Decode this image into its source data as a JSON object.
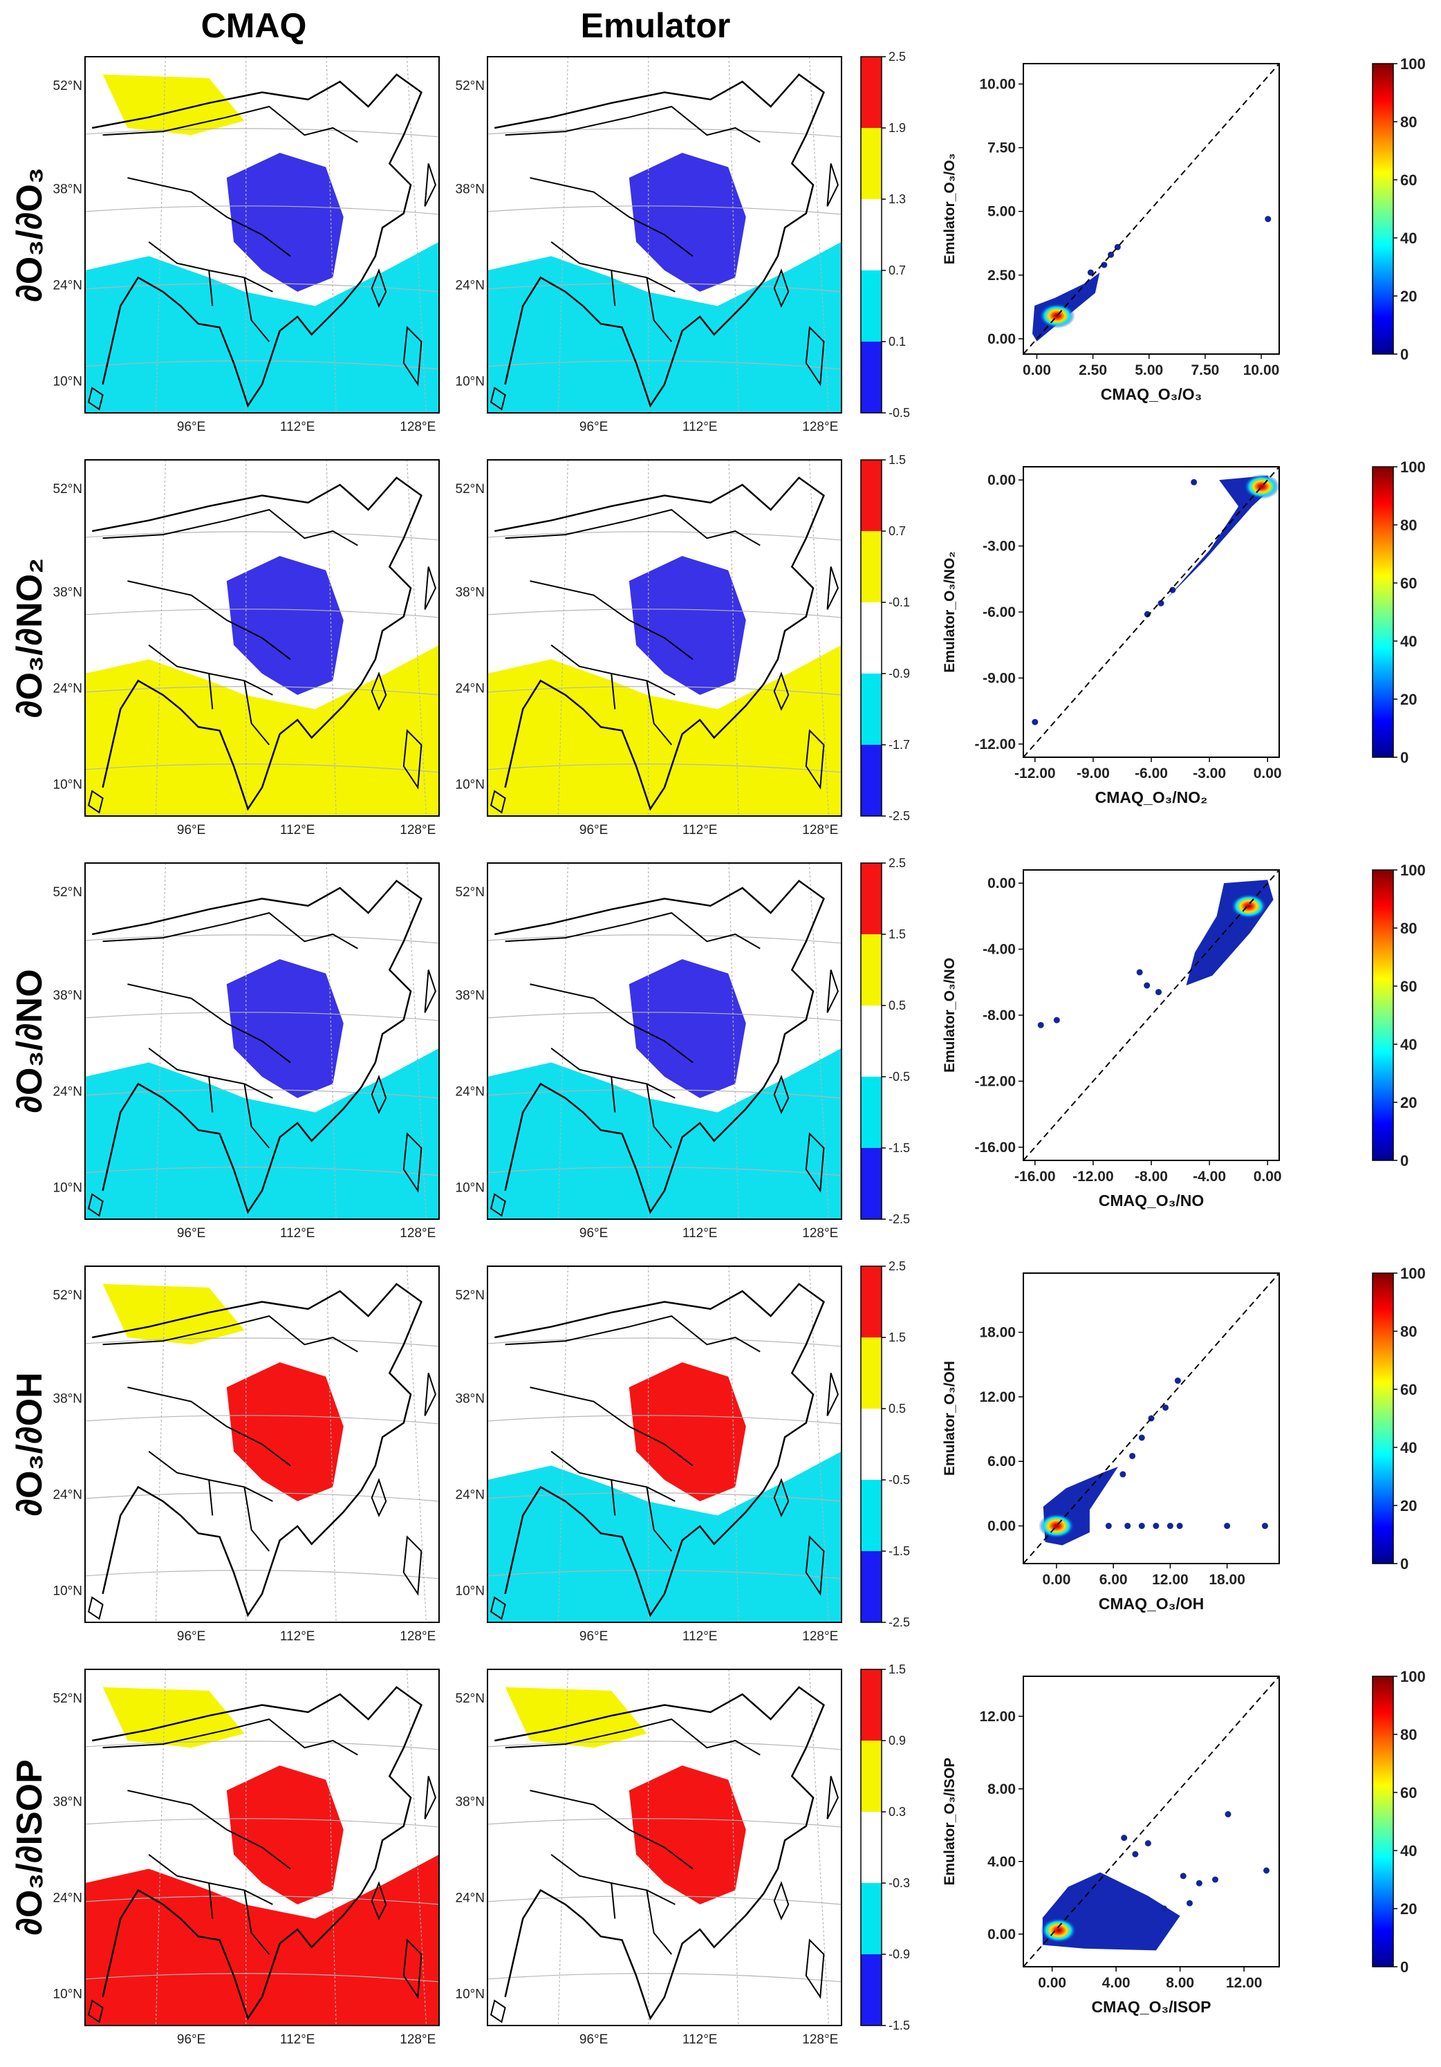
{
  "headers": {
    "cmaq": "CMAQ",
    "emulator": "Emulator"
  },
  "map_axes": {
    "lat_labels": [
      "52°N",
      "38°N",
      "24°N",
      "10°N"
    ],
    "lon_labels": [
      "96°E",
      "112°E",
      "128°E"
    ]
  },
  "colors": {
    "blue": "#1b1bf5",
    "cyan": "#00e6f0",
    "white": "#ffffff",
    "yellow": "#f5f500",
    "red": "#f51414",
    "region_blue": "#3a32e6",
    "region_cyan": "#10e0ee"
  },
  "rows": [
    {
      "row_label": "∂O₃/∂O₃",
      "map_colorbar_ticks": [
        "2.5",
        "1.9",
        "1.3",
        "0.7",
        "0.1",
        "-0.5"
      ],
      "map_fill": {
        "cmaq": [
          "region_cyan",
          "region_blue",
          "yellow"
        ],
        "emulator": [
          "region_cyan",
          "region_blue",
          "white"
        ]
      }
    },
    {
      "row_label": "∂O₃/∂NO₂",
      "map_colorbar_ticks": [
        "1.5",
        "0.7",
        "-0.1",
        "-0.9",
        "-1.7",
        "-2.5"
      ],
      "map_fill": {
        "cmaq": [
          "yellow",
          "region_blue",
          "white"
        ],
        "emulator": [
          "yellow",
          "region_blue",
          "white"
        ]
      }
    },
    {
      "row_label": "∂O₃/∂NO",
      "map_colorbar_ticks": [
        "2.5",
        "1.5",
        "0.5",
        "-0.5",
        "-1.5",
        "-2.5"
      ],
      "map_fill": {
        "cmaq": [
          "region_cyan",
          "region_blue",
          "white"
        ],
        "emulator": [
          "region_cyan",
          "region_blue",
          "white"
        ]
      }
    },
    {
      "row_label": "∂O₃/∂OH",
      "map_colorbar_ticks": [
        "2.5",
        "1.5",
        "0.5",
        "-0.5",
        "-1.5",
        "-2.5"
      ],
      "map_fill": {
        "cmaq": [
          "white",
          "red",
          "yellow"
        ],
        "emulator": [
          "region_cyan",
          "red",
          "white"
        ]
      }
    },
    {
      "row_label": "∂O₃/∂ISOP",
      "map_colorbar_ticks": [
        "1.5",
        "0.9",
        "0.3",
        "-0.3",
        "-0.9",
        "-1.5"
      ],
      "map_fill": {
        "cmaq": [
          "red",
          "red",
          "yellow"
        ],
        "emulator": [
          "white",
          "red",
          "yellow"
        ]
      }
    }
  ],
  "chart_data": [
    {
      "type": "scatter",
      "xlabel": "CMAQ_O₃/O₃",
      "ylabel": "Emulator_O₃/O₃",
      "xlim": [
        -0.6,
        10.8
      ],
      "ylim": [
        -0.6,
        10.8
      ],
      "xticks": [
        0.0,
        2.5,
        5.0,
        7.5,
        10.0
      ],
      "xtick_labels": [
        "0.00",
        "2.50",
        "5.00",
        "7.50",
        "10.00"
      ],
      "yticks": [
        0.0,
        2.5,
        5.0,
        7.5,
        10.0
      ],
      "ytick_labels": [
        "0.00",
        "2.50",
        "5.00",
        "7.50",
        "10.00"
      ],
      "colorbar_ticks": [
        "100",
        "80",
        "60",
        "40",
        "20",
        "0"
      ],
      "density_center": [
        0.9,
        0.9
      ],
      "cloud": [
        [
          -0.2,
          0.2
        ],
        [
          0.0,
          -0.1
        ],
        [
          1.5,
          1.0
        ],
        [
          2.6,
          1.8
        ],
        [
          2.8,
          2.6
        ],
        [
          2.2,
          2.2
        ],
        [
          0.8,
          1.6
        ],
        [
          -0.1,
          1.3
        ]
      ],
      "points": [
        [
          3.0,
          2.9
        ],
        [
          3.3,
          3.3
        ],
        [
          10.3,
          4.7
        ],
        [
          3.6,
          3.6
        ],
        [
          2.4,
          2.6
        ]
      ]
    },
    {
      "type": "scatter",
      "xlabel": "CMAQ_O₃/NO₂",
      "ylabel": "Emulator_O₃/NO₂",
      "xlim": [
        -12.6,
        0.6
      ],
      "ylim": [
        -12.6,
        0.6
      ],
      "xticks": [
        -12,
        -9,
        -6,
        -3,
        0
      ],
      "xtick_labels": [
        "-12.00",
        "-9.00",
        "-6.00",
        "-3.00",
        "0.00"
      ],
      "yticks": [
        -12,
        -9,
        -6,
        -3,
        0
      ],
      "ytick_labels": [
        "-12.00",
        "-9.00",
        "-6.00",
        "-3.00",
        "0.00"
      ],
      "colorbar_ticks": [
        "100",
        "80",
        "60",
        "40",
        "20",
        "0"
      ],
      "density_center": [
        -0.3,
        -0.3
      ],
      "cloud": [
        [
          -5.2,
          -5.4
        ],
        [
          -3.0,
          -3.2
        ],
        [
          -1.5,
          -1.2
        ],
        [
          -2.5,
          0.0
        ],
        [
          0.0,
          0.2
        ],
        [
          0.3,
          -0.3
        ],
        [
          -0.8,
          -1.2
        ],
        [
          -3.2,
          -3.6
        ]
      ],
      "points": [
        [
          -12.0,
          -11.0
        ],
        [
          -6.2,
          -6.1
        ],
        [
          -5.5,
          -5.6
        ],
        [
          -4.9,
          -5.0
        ],
        [
          -3.8,
          -0.1
        ]
      ]
    },
    {
      "type": "scatter",
      "xlabel": "CMAQ_O₃/NO",
      "ylabel": "Emulator_O₃/NO",
      "xlim": [
        -16.8,
        0.8
      ],
      "ylim": [
        -16.8,
        0.8
      ],
      "xticks": [
        -16,
        -12,
        -8,
        -4,
        0
      ],
      "xtick_labels": [
        "-16.00",
        "-12.00",
        "-8.00",
        "-4.00",
        "0.00"
      ],
      "yticks": [
        -16,
        -12,
        -8,
        -4,
        0
      ],
      "ytick_labels": [
        "-16.00",
        "-12.00",
        "-8.00",
        "-4.00",
        "0.00"
      ],
      "colorbar_ticks": [
        "100",
        "80",
        "60",
        "40",
        "20",
        "0"
      ],
      "density_center": [
        -1.3,
        -1.4
      ],
      "cloud": [
        [
          -5.6,
          -6.2
        ],
        [
          -5.0,
          -4.2
        ],
        [
          -3.5,
          -2.0
        ],
        [
          -3.0,
          0.0
        ],
        [
          0.0,
          0.2
        ],
        [
          0.4,
          -1.0
        ],
        [
          -1.2,
          -3.0
        ],
        [
          -3.8,
          -5.6
        ]
      ],
      "points": [
        [
          -15.6,
          -8.6
        ],
        [
          -14.5,
          -8.3
        ],
        [
          -8.3,
          -6.2
        ],
        [
          -7.5,
          -6.6
        ],
        [
          -8.8,
          -5.4
        ]
      ]
    },
    {
      "type": "scatter",
      "xlabel": "CMAQ_O₃/OH",
      "ylabel": "Emulator_O₃/OH",
      "xlim": [
        -3.5,
        23.5
      ],
      "ylim": [
        -3.5,
        23.5
      ],
      "xticks": [
        0,
        6,
        12,
        18
      ],
      "xtick_labels": [
        "0.00",
        "6.00",
        "12.00",
        "18.00"
      ],
      "yticks": [
        0,
        6,
        12,
        18
      ],
      "ytick_labels": [
        "0.00",
        "6.00",
        "12.00",
        "18.00"
      ],
      "colorbar_ticks": [
        "100",
        "80",
        "60",
        "40",
        "20",
        "0"
      ],
      "density_center": [
        0.0,
        0.0
      ],
      "cloud": [
        [
          -1.2,
          -1.5
        ],
        [
          -1.4,
          1.8
        ],
        [
          1.0,
          3.5
        ],
        [
          5.0,
          5.0
        ],
        [
          6.5,
          5.5
        ],
        [
          3.5,
          1.5
        ],
        [
          3.5,
          -0.6
        ],
        [
          0.6,
          -1.8
        ]
      ],
      "points": [
        [
          7.0,
          4.8
        ],
        [
          9.0,
          8.2
        ],
        [
          10.0,
          10.0
        ],
        [
          11.5,
          11.0
        ],
        [
          12.8,
          13.5
        ],
        [
          8.0,
          6.5
        ],
        [
          7.5,
          0.0
        ],
        [
          9.0,
          0.0
        ],
        [
          10.5,
          0.0
        ],
        [
          12.0,
          0.0
        ],
        [
          13.0,
          0.0
        ],
        [
          18.0,
          0.0
        ],
        [
          22.0,
          0.0
        ],
        [
          5.5,
          0.0
        ]
      ]
    },
    {
      "type": "scatter",
      "xlabel": "CMAQ_O₃/ISOP",
      "ylabel": "Emulator_O₃/ISOP",
      "xlim": [
        -1.8,
        14.2
      ],
      "ylim": [
        -1.8,
        14.2
      ],
      "xticks": [
        0,
        4,
        8,
        12
      ],
      "xtick_labels": [
        "0.00",
        "4.00",
        "8.00",
        "12.00"
      ],
      "yticks": [
        0,
        4,
        8,
        12
      ],
      "ytick_labels": [
        "0.00",
        "4.00",
        "8.00",
        "12.00"
      ],
      "colorbar_ticks": [
        "100",
        "80",
        "60",
        "40",
        "20",
        "0"
      ],
      "density_center": [
        0.4,
        0.2
      ],
      "cloud": [
        [
          -0.6,
          -0.6
        ],
        [
          -0.6,
          0.9
        ],
        [
          1.0,
          2.6
        ],
        [
          3.0,
          3.4
        ],
        [
          6.0,
          2.1
        ],
        [
          8.0,
          1.0
        ],
        [
          6.5,
          -0.9
        ],
        [
          2.0,
          -0.8
        ]
      ],
      "points": [
        [
          5.2,
          4.4
        ],
        [
          6.0,
          5.0
        ],
        [
          8.2,
          3.2
        ],
        [
          9.2,
          2.8
        ],
        [
          10.2,
          3.0
        ],
        [
          11.0,
          6.6
        ],
        [
          13.4,
          3.5
        ],
        [
          4.5,
          5.3
        ],
        [
          7.0,
          1.4
        ],
        [
          8.6,
          1.7
        ]
      ]
    }
  ]
}
